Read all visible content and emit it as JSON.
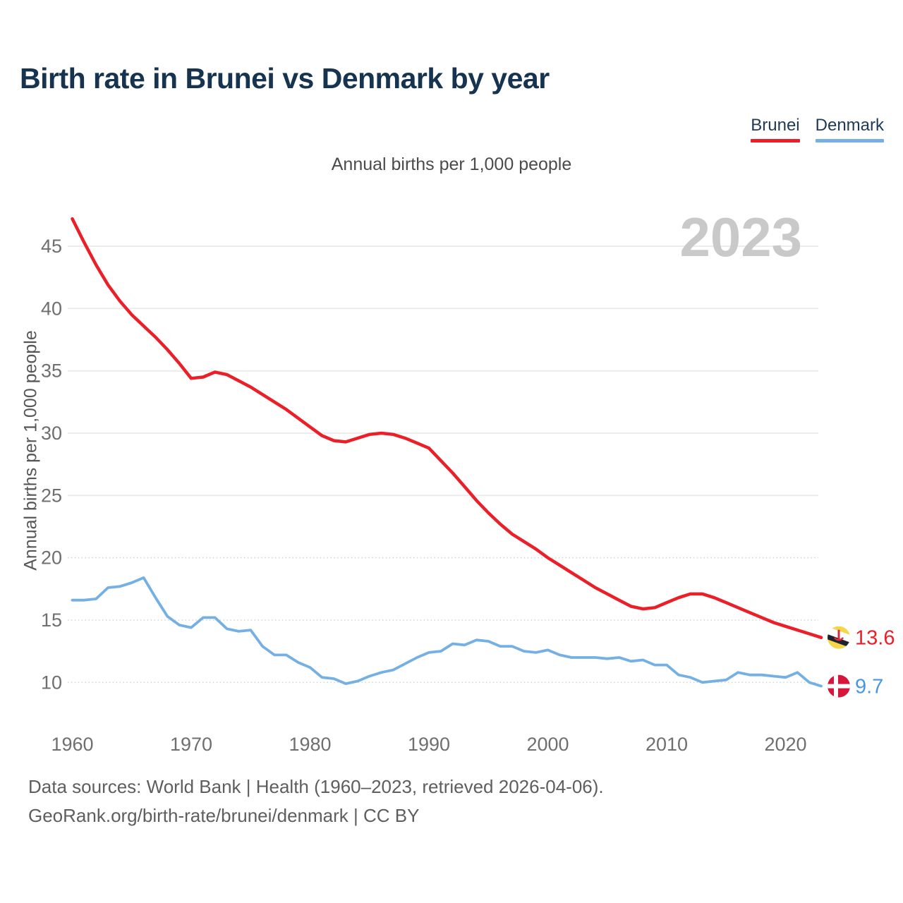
{
  "header": {
    "title": "Birth rate in Brunei vs Denmark by year",
    "legend": [
      {
        "label": "Brunei"
      },
      {
        "label": "Denmark"
      }
    ]
  },
  "subtitle": "Annual births per 1,000 people",
  "watermark": "2023",
  "chart_data": {
    "type": "line",
    "title": "Birth rate in Brunei vs Denmark by year",
    "subtitle": "Annual births per 1,000 people",
    "xlabel": "",
    "ylabel": "Annual births per 1,000 people",
    "grid": "horizontal",
    "legend_position": "top-right",
    "xlim": [
      1960,
      2023
    ],
    "ylim": [
      9,
      48
    ],
    "x_ticks": [
      1960,
      1970,
      1980,
      1990,
      2000,
      2010,
      2020
    ],
    "y_ticks": [
      10,
      15,
      20,
      25,
      30,
      35,
      40,
      45
    ],
    "solid_grid_min": 25,
    "x": [
      1960,
      1961,
      1962,
      1963,
      1964,
      1965,
      1966,
      1967,
      1968,
      1969,
      1970,
      1971,
      1972,
      1973,
      1974,
      1975,
      1976,
      1977,
      1978,
      1979,
      1980,
      1981,
      1982,
      1983,
      1984,
      1985,
      1986,
      1987,
      1988,
      1989,
      1990,
      1991,
      1992,
      1993,
      1994,
      1995,
      1996,
      1997,
      1998,
      1999,
      2000,
      2001,
      2002,
      2003,
      2004,
      2005,
      2006,
      2007,
      2008,
      2009,
      2010,
      2011,
      2012,
      2013,
      2014,
      2015,
      2016,
      2017,
      2018,
      2019,
      2020,
      2021,
      2022,
      2023
    ],
    "series": [
      {
        "name": "Brunei",
        "color": "#ec1e27",
        "label_color": "#ec1e27",
        "flag": "brunei",
        "end_label": "13.6",
        "values": [
          47.2,
          45.3,
          43.5,
          41.9,
          40.6,
          39.5,
          38.6,
          37.7,
          36.7,
          35.6,
          34.4,
          34.5,
          34.9,
          34.7,
          34.2,
          33.7,
          33.1,
          32.5,
          31.9,
          31.2,
          30.5,
          29.8,
          29.4,
          29.3,
          29.6,
          29.9,
          30.0,
          29.9,
          29.6,
          29.2,
          28.8,
          27.8,
          26.8,
          25.7,
          24.6,
          23.6,
          22.7,
          21.9,
          21.3,
          20.7,
          20.0,
          19.4,
          18.8,
          18.2,
          17.6,
          17.1,
          16.6,
          16.1,
          15.9,
          16.0,
          16.4,
          16.8,
          17.1,
          17.1,
          16.8,
          16.4,
          16.0,
          15.6,
          15.2,
          14.8,
          14.5,
          14.2,
          13.9,
          13.6
        ]
      },
      {
        "name": "Denmark",
        "color": "#74b0e4",
        "label_color": "#4a96e0",
        "flag": "denmark",
        "end_label": "9.7",
        "values": [
          16.6,
          16.6,
          16.7,
          17.6,
          17.7,
          18.0,
          18.4,
          16.8,
          15.3,
          14.6,
          14.4,
          15.2,
          15.2,
          14.3,
          14.1,
          14.2,
          12.9,
          12.2,
          12.2,
          11.6,
          11.2,
          10.4,
          10.3,
          9.9,
          10.1,
          10.5,
          10.8,
          11.0,
          11.5,
          12.0,
          12.4,
          12.5,
          13.1,
          13.0,
          13.4,
          13.3,
          12.9,
          12.9,
          12.5,
          12.4,
          12.6,
          12.2,
          12.0,
          12.0,
          12.0,
          11.9,
          12.0,
          11.7,
          11.8,
          11.4,
          11.4,
          10.6,
          10.4,
          10.0,
          10.1,
          10.2,
          10.8,
          10.6,
          10.6,
          10.5,
          10.4,
          10.8,
          10.0,
          9.7
        ]
      }
    ]
  },
  "footer": {
    "line1": "Data sources: World Bank | Health (1960–2023, retrieved 2026-04-06).",
    "line2": "GeoRank.org/birth-rate/brunei/denmark | CC BY"
  }
}
